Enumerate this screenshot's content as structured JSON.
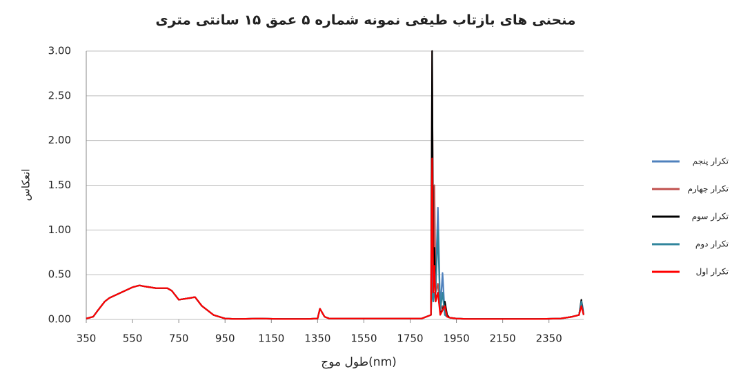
{
  "chart_data": {
    "type": "line",
    "title": "منحنی های بازتاب طیفی نمونه شماره ۵ عمق ۱۵ سانتی متری",
    "x_label": "طول موج(nm)",
    "y_label": "انعکاس",
    "x": [
      350,
      380,
      400,
      430,
      450,
      500,
      550,
      580,
      600,
      650,
      700,
      720,
      750,
      800,
      820,
      850,
      900,
      950,
      1000,
      1100,
      1200,
      1300,
      1350,
      1360,
      1380,
      1400,
      1500,
      1600,
      1700,
      1800,
      1840,
      1845,
      1850,
      1855,
      1860,
      1870,
      1880,
      1890,
      1900,
      1910,
      1920,
      1950,
      2000,
      2100,
      2200,
      2300,
      2400,
      2450,
      2480,
      2490,
      2495,
      2500
    ],
    "xlim": [
      350,
      2500
    ],
    "xticks": [
      350,
      550,
      750,
      950,
      1150,
      1350,
      1550,
      1750,
      1950,
      2150,
      2350
    ],
    "ylim": [
      0,
      3
    ],
    "yticks": [
      {
        "value": 0,
        "label": "0.00"
      },
      {
        "value": 0.5,
        "label": "0.50"
      },
      {
        "value": 1,
        "label": "1.00"
      },
      {
        "value": 1.5,
        "label": "1.50"
      },
      {
        "value": 2,
        "label": "2.00"
      },
      {
        "value": 2.5,
        "label": "2.50"
      },
      {
        "value": 3,
        "label": "3.00"
      }
    ],
    "grid": true,
    "legend": "right",
    "series": [
      {
        "name": "تکرار پنجم",
        "color": "#4f81bd",
        "values": [
          0.01,
          0.03,
          0.1,
          0.2,
          0.24,
          0.3,
          0.36,
          0.38,
          0.37,
          0.35,
          0.35,
          0.32,
          0.22,
          0.24,
          0.25,
          0.15,
          0.05,
          0.01,
          0.005,
          0.01,
          0.005,
          0.005,
          0.01,
          0.12,
          0.03,
          0.01,
          0.01,
          0.01,
          0.01,
          0.01,
          0.05,
          0.6,
          0.3,
          0.5,
          0.4,
          1.25,
          0.1,
          0.52,
          0.05,
          0.03,
          0.02,
          0.01,
          0.005,
          0.005,
          0.005,
          0.005,
          0.01,
          0.03,
          0.05,
          0.2,
          0.15,
          0.05
        ]
      },
      {
        "name": "تکرار چهارم",
        "color": "#c0504d",
        "values": [
          0.01,
          0.03,
          0.1,
          0.2,
          0.24,
          0.3,
          0.36,
          0.38,
          0.37,
          0.35,
          0.35,
          0.32,
          0.22,
          0.24,
          0.25,
          0.15,
          0.05,
          0.01,
          0.005,
          0.01,
          0.005,
          0.005,
          0.01,
          0.12,
          0.03,
          0.01,
          0.01,
          0.01,
          0.01,
          0.01,
          0.05,
          3.0,
          0.5,
          1.5,
          0.3,
          0.4,
          0.1,
          0.15,
          0.1,
          0.03,
          0.02,
          0.01,
          0.005,
          0.005,
          0.005,
          0.005,
          0.01,
          0.03,
          0.05,
          0.18,
          0.1,
          0.05
        ]
      },
      {
        "name": "تکرار سوم",
        "color": "#000000",
        "values": [
          0.01,
          0.03,
          0.1,
          0.2,
          0.24,
          0.3,
          0.36,
          0.38,
          0.37,
          0.35,
          0.35,
          0.32,
          0.22,
          0.24,
          0.25,
          0.15,
          0.05,
          0.01,
          0.005,
          0.01,
          0.005,
          0.005,
          0.01,
          0.12,
          0.03,
          0.01,
          0.01,
          0.01,
          0.01,
          0.01,
          0.05,
          3.0,
          0.4,
          0.8,
          0.2,
          0.3,
          0.08,
          0.1,
          0.2,
          0.05,
          0.02,
          0.01,
          0.005,
          0.005,
          0.005,
          0.005,
          0.01,
          0.03,
          0.05,
          0.22,
          0.12,
          0.05
        ]
      },
      {
        "name": "تکرار دوم",
        "color": "#31859c",
        "values": [
          0.01,
          0.03,
          0.1,
          0.2,
          0.24,
          0.3,
          0.36,
          0.38,
          0.37,
          0.35,
          0.35,
          0.32,
          0.22,
          0.24,
          0.25,
          0.15,
          0.05,
          0.01,
          0.005,
          0.01,
          0.005,
          0.005,
          0.01,
          0.12,
          0.03,
          0.01,
          0.01,
          0.01,
          0.01,
          0.01,
          0.05,
          0.4,
          0.2,
          0.3,
          0.3,
          1.0,
          0.1,
          0.3,
          0.05,
          0.03,
          0.02,
          0.01,
          0.005,
          0.005,
          0.005,
          0.005,
          0.01,
          0.03,
          0.05,
          0.2,
          0.1,
          0.05
        ]
      },
      {
        "name": "تکرار اول",
        "color": "#ff0000",
        "values": [
          0.01,
          0.03,
          0.1,
          0.2,
          0.24,
          0.3,
          0.36,
          0.38,
          0.37,
          0.35,
          0.35,
          0.32,
          0.22,
          0.24,
          0.25,
          0.15,
          0.05,
          0.01,
          0.005,
          0.01,
          0.005,
          0.005,
          0.01,
          0.12,
          0.03,
          0.01,
          0.01,
          0.01,
          0.01,
          0.01,
          0.05,
          1.8,
          0.3,
          0.6,
          0.2,
          0.3,
          0.05,
          0.1,
          0.15,
          0.03,
          0.02,
          0.01,
          0.005,
          0.005,
          0.005,
          0.005,
          0.01,
          0.03,
          0.05,
          0.15,
          0.1,
          0.05
        ]
      }
    ]
  }
}
